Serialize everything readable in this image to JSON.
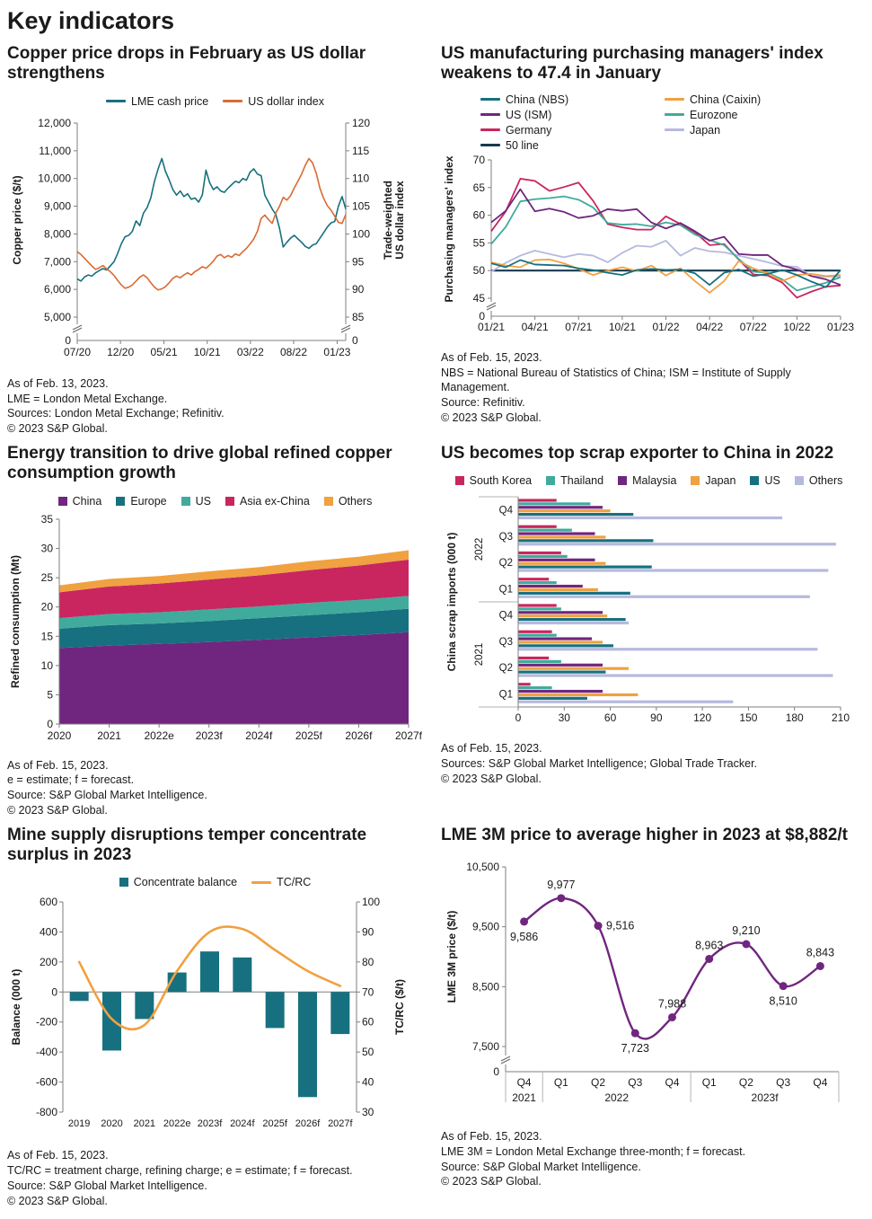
{
  "page": {
    "title": "Key indicators"
  },
  "colors": {
    "teal": "#17707f",
    "green_teal": "#40ab9c",
    "orange": "#d96b33",
    "amber": "#f0a140",
    "purple": "#70267f",
    "crimson": "#c9265f",
    "lavender": "#b6b9de",
    "navy": "#163a4e",
    "axis": "#7f7f7f",
    "text": "#1a1a1a"
  },
  "chart_data": [
    {
      "id": "copper-vs-dollar",
      "type": "dual-line",
      "title": "Copper price drops in February as US dollar strengthens",
      "legend": [
        {
          "label": "LME cash price",
          "color": "teal",
          "marker": "line"
        },
        {
          "label": "US dollar index",
          "color": "orange",
          "marker": "line"
        }
      ],
      "y_left": {
        "title": "Copper price ($/t)",
        "min": 5000,
        "max": 12000,
        "ticks": [
          5000,
          6000,
          7000,
          8000,
          9000,
          10000,
          11000,
          12000
        ],
        "zero_label": "0",
        "axis_break": true
      },
      "y_right": {
        "title": "Trade-weighted\nUS dollar index",
        "min": 85,
        "max": 120,
        "ticks": [
          85,
          90,
          95,
          100,
          105,
          110,
          115,
          120
        ],
        "zero_label": "0",
        "axis_break": true
      },
      "x_ticks": {
        "labels": [
          "07/20",
          "12/20",
          "05/21",
          "10/21",
          "03/22",
          "08/22",
          "01/23"
        ],
        "fracs": [
          0,
          0.161,
          0.323,
          0.484,
          0.645,
          0.806,
          0.968
        ]
      },
      "series": [
        {
          "name": "LME cash price",
          "color": "teal",
          "axis": "left",
          "values": [
            6380,
            6300,
            6450,
            6520,
            6480,
            6600,
            6680,
            6750,
            6700,
            6850,
            7000,
            7300,
            7650,
            7900,
            7950,
            8100,
            8470,
            8300,
            8750,
            8950,
            9300,
            9900,
            10350,
            10720,
            10250,
            9950,
            9600,
            9400,
            9550,
            9350,
            9450,
            9250,
            9300,
            9150,
            9400,
            10300,
            9850,
            9600,
            9700,
            9550,
            9500,
            9650,
            9780,
            9900,
            9850,
            10000,
            9940,
            10230,
            10350,
            10160,
            10100,
            9400,
            9150,
            8900,
            8700,
            8200,
            7530,
            7700,
            7850,
            7950,
            7820,
            7700,
            7550,
            7480,
            7600,
            7650,
            7850,
            8050,
            8250,
            8400,
            8450,
            9000,
            9350,
            8900
          ]
        },
        {
          "name": "US dollar index",
          "color": "orange",
          "axis": "right",
          "values": [
            96.8,
            96.3,
            95.6,
            94.9,
            94.2,
            93.6,
            93.9,
            94.3,
            93.7,
            93.2,
            92.5,
            91.6,
            90.8,
            90.2,
            90.4,
            90.8,
            91.5,
            92.2,
            92.6,
            92.1,
            91.2,
            90.4,
            89.9,
            90.1,
            90.5,
            91.2,
            92.0,
            92.4,
            92.1,
            92.6,
            93.0,
            92.6,
            93.2,
            93.6,
            94.1,
            93.8,
            94.4,
            95.1,
            96.0,
            96.3,
            95.7,
            96.1,
            95.8,
            96.4,
            96.1,
            96.8,
            97.4,
            98.2,
            99.1,
            100.5,
            102.8,
            103.4,
            102.6,
            101.9,
            103.8,
            105.0,
            106.6,
            106.1,
            106.9,
            108.3,
            109.5,
            110.8,
            112.4,
            113.6,
            112.8,
            110.9,
            108.2,
            106.4,
            105.1,
            104.3,
            103.2,
            102.1,
            101.9,
            103.5
          ]
        }
      ],
      "notes": "As of Feb. 13, 2023.\nLME = London Metal Exchange.\nSources: London Metal Exchange; Refinitiv.\n© 2023 S&P Global."
    },
    {
      "id": "pmi",
      "type": "multi-line",
      "title": "US manufacturing purchasing managers' index weakens to 47.4 in January",
      "legend": [
        {
          "label": "China (NBS)",
          "color": "teal",
          "marker": "line"
        },
        {
          "label": "China (Caixin)",
          "color": "amber",
          "marker": "line"
        },
        {
          "label": "US (ISM)",
          "color": "purple",
          "marker": "line"
        },
        {
          "label": "Eurozone",
          "color": "green_teal",
          "marker": "line"
        },
        {
          "label": "Germany",
          "color": "crimson",
          "marker": "line"
        },
        {
          "label": "Japan",
          "color": "lavender",
          "marker": "line"
        },
        {
          "label": "50 line",
          "color": "navy",
          "marker": "line"
        }
      ],
      "y": {
        "title": "Purchasing managers' index",
        "min": 45,
        "max": 70,
        "ticks": [
          45,
          50,
          55,
          60,
          65,
          70
        ],
        "zero_label": "0",
        "axis_break": true
      },
      "x_ticks": {
        "labels": [
          "01/21",
          "04/21",
          "07/21",
          "10/21",
          "01/22",
          "04/22",
          "07/22",
          "10/22",
          "01/23"
        ],
        "idx": [
          0,
          3,
          6,
          9,
          12,
          15,
          18,
          21,
          24
        ]
      },
      "series": [
        {
          "name": "China (NBS)",
          "color": "teal",
          "values": [
            51.3,
            50.6,
            51.9,
            51.1,
            51.0,
            50.9,
            50.4,
            50.1,
            49.6,
            49.2,
            50.1,
            50.3,
            50.1,
            50.2,
            49.5,
            47.4,
            49.6,
            50.2,
            49.0,
            49.4,
            50.1,
            49.2,
            48.0,
            47.0,
            50.1
          ]
        },
        {
          "name": "China (Caixin)",
          "color": "amber",
          "values": [
            51.5,
            50.9,
            50.6,
            51.9,
            52.0,
            51.3,
            50.3,
            49.2,
            50.0,
            50.6,
            49.9,
            50.9,
            49.1,
            50.4,
            48.1,
            46.0,
            48.1,
            51.7,
            50.4,
            49.5,
            48.1,
            49.2,
            49.4,
            49.0,
            49.2
          ]
        },
        {
          "name": "US (ISM)",
          "color": "purple",
          "values": [
            58.7,
            60.8,
            64.7,
            60.7,
            61.2,
            60.6,
            59.5,
            59.9,
            61.1,
            60.8,
            61.1,
            58.7,
            57.6,
            58.6,
            57.1,
            55.4,
            56.1,
            53.0,
            52.8,
            52.8,
            50.9,
            50.2,
            49.0,
            48.4,
            47.4
          ]
        },
        {
          "name": "Eurozone",
          "color": "green_teal",
          "values": [
            54.8,
            57.9,
            62.5,
            62.9,
            63.1,
            63.4,
            62.8,
            61.4,
            58.6,
            58.3,
            58.4,
            58.0,
            58.7,
            58.2,
            56.5,
            55.5,
            54.6,
            52.1,
            49.8,
            49.6,
            48.4,
            46.4,
            47.1,
            47.8,
            48.8
          ]
        },
        {
          "name": "Germany",
          "color": "crimson",
          "values": [
            57.1,
            60.7,
            66.6,
            66.2,
            64.4,
            65.1,
            65.9,
            62.6,
            58.4,
            57.8,
            57.4,
            57.4,
            59.8,
            58.4,
            56.9,
            54.6,
            54.8,
            52.0,
            49.3,
            49.1,
            47.8,
            45.1,
            46.2,
            47.1,
            47.3
          ]
        },
        {
          "name": "Japan",
          "color": "lavender",
          "values": [
            49.8,
            51.4,
            52.7,
            53.6,
            53.0,
            52.4,
            53.0,
            52.7,
            51.5,
            53.2,
            54.5,
            54.3,
            55.4,
            52.7,
            54.1,
            53.5,
            53.3,
            52.7,
            52.1,
            51.5,
            50.8,
            50.7,
            49.0,
            48.9,
            48.9
          ]
        },
        {
          "name": "50 line",
          "color": "navy",
          "hline": 50
        }
      ],
      "notes": "As of Feb. 15, 2023.\nNBS = National Bureau of Statistics of China; ISM = Institute of Supply Management.\nSource: Refinitiv.\n© 2023 S&P Global."
    },
    {
      "id": "refined-consumption",
      "type": "stacked-area",
      "title": "Energy transition to drive global refined copper consumption growth",
      "legend": [
        {
          "label": "China",
          "color": "purple",
          "marker": "square"
        },
        {
          "label": "Europe",
          "color": "teal",
          "marker": "square"
        },
        {
          "label": "US",
          "color": "green_teal",
          "marker": "square"
        },
        {
          "label": "Asia ex-China",
          "color": "crimson",
          "marker": "square"
        },
        {
          "label": "Others",
          "color": "amber",
          "marker": "square"
        }
      ],
      "y": {
        "title": "Refined consumption (Mt)",
        "min": 0,
        "max": 35,
        "ticks": [
          0,
          5,
          10,
          15,
          20,
          25,
          30,
          35
        ]
      },
      "categories": [
        "2020",
        "2021",
        "2022e",
        "2023f",
        "2024f",
        "2025f",
        "2026f",
        "2027f"
      ],
      "series": [
        {
          "name": "China",
          "color": "purple",
          "values": [
            13.0,
            13.4,
            13.7,
            14.0,
            14.4,
            14.8,
            15.2,
            15.7
          ]
        },
        {
          "name": "Europe",
          "color": "teal",
          "values": [
            3.3,
            3.5,
            3.5,
            3.6,
            3.7,
            3.8,
            3.9,
            4.0
          ]
        },
        {
          "name": "US",
          "color": "green_teal",
          "values": [
            1.8,
            1.9,
            1.9,
            2.0,
            2.0,
            2.1,
            2.1,
            2.2
          ]
        },
        {
          "name": "Asia ex-China",
          "color": "crimson",
          "values": [
            4.4,
            4.7,
            4.9,
            5.1,
            5.3,
            5.6,
            5.9,
            6.2
          ]
        },
        {
          "name": "Others",
          "color": "amber",
          "values": [
            1.2,
            1.3,
            1.3,
            1.4,
            1.4,
            1.5,
            1.5,
            1.6
          ]
        }
      ],
      "notes": "As of Feb. 15, 2023.\ne = estimate; f = forecast.\nSource: S&P Global Market Intelligence.\n© 2023 S&P Global."
    },
    {
      "id": "china-scrap-imports",
      "type": "grouped-hbar",
      "title": "US becomes top scrap exporter to China in 2022",
      "legend": [
        {
          "label": "South Korea",
          "color": "crimson",
          "marker": "square"
        },
        {
          "label": "Thailand",
          "color": "green_teal",
          "marker": "square"
        },
        {
          "label": "Malaysia",
          "color": "purple",
          "marker": "square"
        },
        {
          "label": "Japan",
          "color": "amber",
          "marker": "square"
        },
        {
          "label": "US",
          "color": "teal",
          "marker": "square"
        },
        {
          "label": "Others",
          "color": "lavender",
          "marker": "square"
        }
      ],
      "y_title": "China scrap imports (000 t)",
      "year_groups": [
        {
          "year": "2022",
          "quarters": [
            "Q4",
            "Q3",
            "Q2",
            "Q1"
          ]
        },
        {
          "year": "2021",
          "quarters": [
            "Q4",
            "Q3",
            "Q2",
            "Q1"
          ]
        }
      ],
      "x": {
        "min": 0,
        "max": 210,
        "ticks": [
          0,
          30,
          60,
          90,
          120,
          150,
          180,
          210
        ]
      },
      "series": [
        {
          "name": "South Korea",
          "color": "crimson",
          "values": [
            25,
            25,
            28,
            20,
            25,
            22,
            20,
            8
          ]
        },
        {
          "name": "Thailand",
          "color": "green_teal",
          "values": [
            47,
            35,
            32,
            25,
            28,
            25,
            28,
            22
          ]
        },
        {
          "name": "Malaysia",
          "color": "purple",
          "values": [
            55,
            50,
            50,
            42,
            55,
            48,
            55,
            55
          ]
        },
        {
          "name": "Japan",
          "color": "amber",
          "values": [
            60,
            57,
            57,
            52,
            58,
            55,
            72,
            78
          ]
        },
        {
          "name": "US",
          "color": "teal",
          "values": [
            75,
            88,
            87,
            73,
            70,
            62,
            57,
            45
          ]
        },
        {
          "name": "Others",
          "color": "lavender",
          "values": [
            172,
            207,
            202,
            190,
            72,
            195,
            205,
            140
          ]
        }
      ],
      "notes": "As of Feb. 15, 2023.\nSources: S&P Global Market Intelligence; Global Trade Tracker.\n© 2023 S&P Global."
    },
    {
      "id": "concentrate-balance",
      "type": "bar-line",
      "title": "Mine supply disruptions temper concentrate surplus in 2023",
      "legend": [
        {
          "label": "Concentrate balance",
          "color": "teal",
          "marker": "square"
        },
        {
          "label": "TC/RC",
          "color": "amber",
          "marker": "line"
        }
      ],
      "y_left": {
        "title": "Balance (000 t)",
        "min": -800,
        "max": 600,
        "ticks": [
          -800,
          -600,
          -400,
          -200,
          0,
          200,
          400,
          600
        ]
      },
      "y_right": {
        "title": "TC/RC ($/t)",
        "min": 30,
        "max": 100,
        "ticks": [
          30,
          40,
          50,
          60,
          70,
          80,
          90,
          100
        ]
      },
      "categories": [
        "2019",
        "2020",
        "2021",
        "2022e",
        "2023f",
        "2024f",
        "2025f",
        "2026f",
        "2027f"
      ],
      "bars": {
        "name": "Concentrate balance",
        "color": "teal",
        "values": [
          -60,
          -390,
          -180,
          130,
          270,
          230,
          -240,
          -700,
          -280
        ]
      },
      "line": {
        "name": "TC/RC",
        "color": "amber",
        "values": [
          80,
          61,
          59,
          77,
          90,
          91,
          84,
          77,
          72
        ]
      },
      "notes": "As of Feb. 15, 2023.\nTC/RC = treatment charge, refining charge; e = estimate; f = forecast.\nSource: S&P Global Market Intelligence.\n© 2023 S&P Global."
    },
    {
      "id": "lme-3m-price",
      "type": "line-labeled",
      "title": "LME 3M price to average higher in 2023 at $8,882/t",
      "y": {
        "title": "LME 3M price ($/t)",
        "min": 7500,
        "max": 10500,
        "ticks": [
          7500,
          8500,
          9500,
          10500
        ],
        "zero_label": "0",
        "axis_break": true
      },
      "x_groups": [
        {
          "year": "2021",
          "quarters": [
            "Q4"
          ]
        },
        {
          "year": "2022",
          "quarters": [
            "Q1",
            "Q2",
            "Q3",
            "Q4"
          ]
        },
        {
          "year": "2023f",
          "quarters": [
            "Q1",
            "Q2",
            "Q3",
            "Q4"
          ]
        }
      ],
      "series": {
        "name": "LME 3M price",
        "color": "purple",
        "values": [
          9586,
          9977,
          9516,
          7723,
          7988,
          8963,
          9210,
          8510,
          8843
        ],
        "labels": [
          "9,586",
          "9,977",
          "9,516",
          "7,723",
          "7,988",
          "8,963",
          "9,210",
          "8,510",
          "8,843"
        ],
        "label_pos": [
          "below",
          "above",
          "right",
          "below",
          "above",
          "above",
          "above",
          "below",
          "above"
        ]
      },
      "notes": "As of Feb. 15, 2023.\nLME 3M = London Metal Exchange three-month; f = forecast.\nSource: S&P Global Market Intelligence.\n© 2023 S&P Global."
    }
  ]
}
